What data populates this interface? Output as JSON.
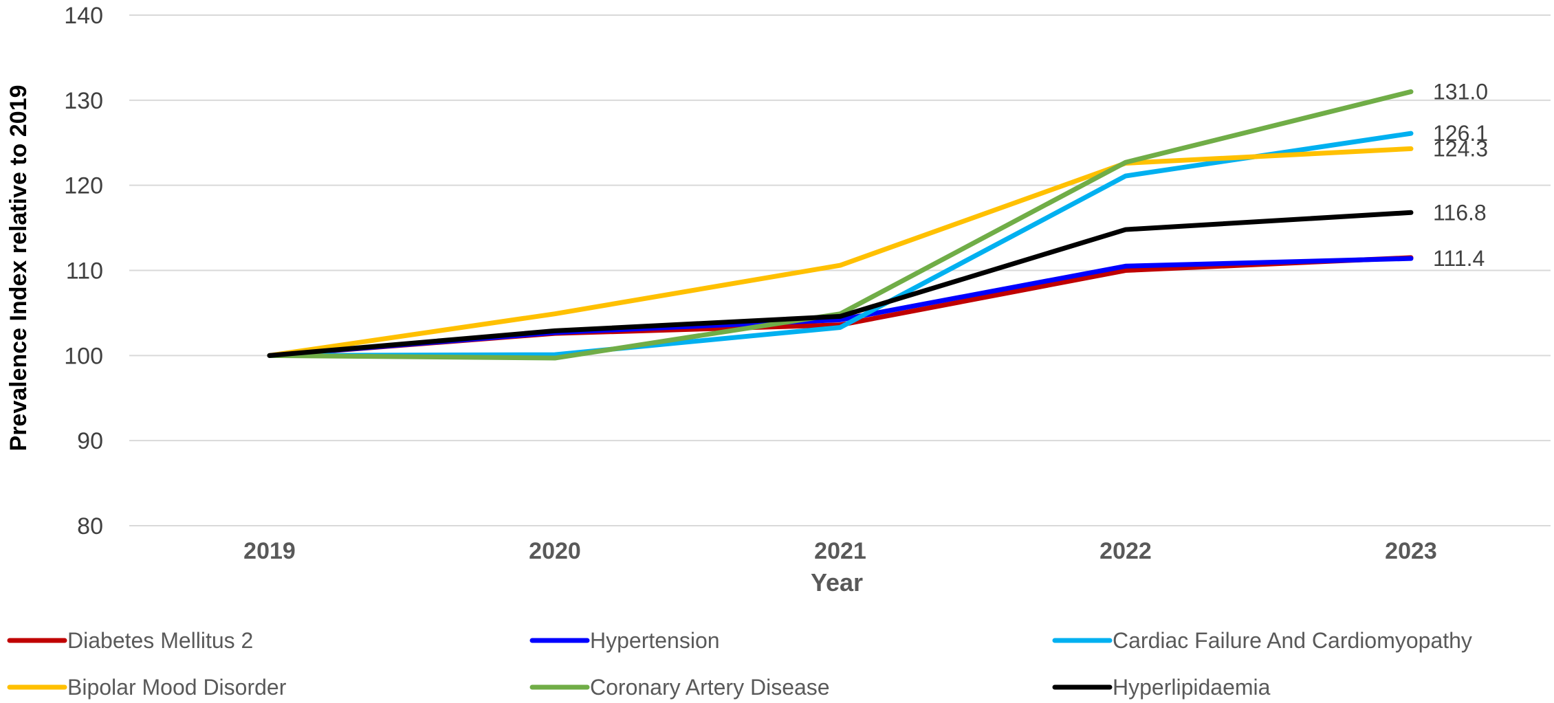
{
  "chart_data": {
    "type": "line",
    "title": "",
    "xlabel": "Year",
    "ylabel": "Prevalence Index relative to 2019",
    "categories": [
      "2019",
      "2020",
      "2021",
      "2022",
      "2023"
    ],
    "ylim": [
      80,
      140
    ],
    "yticks": [
      80,
      90,
      100,
      110,
      120,
      130,
      140
    ],
    "grid": true,
    "legend_position": "bottom",
    "series": [
      {
        "name": "Diabetes Mellitus 2",
        "color": "#c00000",
        "values": [
          100,
          102.6,
          103.6,
          110.0,
          111.5
        ]
      },
      {
        "name": "Hypertension",
        "color": "#0000ff",
        "values": [
          100,
          102.7,
          104.2,
          110.5,
          111.4
        ]
      },
      {
        "name": "Cardiac Failure And Cardiomyopathy",
        "color": "#00b0f0",
        "values": [
          100,
          100.1,
          103.3,
          121.1,
          126.1
        ]
      },
      {
        "name": "Bipolar Mood Disorder",
        "color": "#ffc000",
        "values": [
          100,
          104.9,
          110.6,
          122.6,
          124.3
        ]
      },
      {
        "name": "Coronary Artery Disease",
        "color": "#70ad47",
        "values": [
          100,
          99.7,
          104.9,
          122.7,
          131.0
        ]
      },
      {
        "name": "Hyperlipidaemia",
        "color": "#000000",
        "values": [
          100,
          102.9,
          104.6,
          114.8,
          116.8
        ]
      }
    ],
    "data_labels": [
      {
        "text": "131.0",
        "value": 131.0
      },
      {
        "text": "126.1",
        "value": 126.1
      },
      {
        "text": "124.3",
        "value": 124.3
      },
      {
        "text": "116.8",
        "value": 116.8
      },
      {
        "text": "111.4",
        "value": 111.4
      }
    ]
  }
}
